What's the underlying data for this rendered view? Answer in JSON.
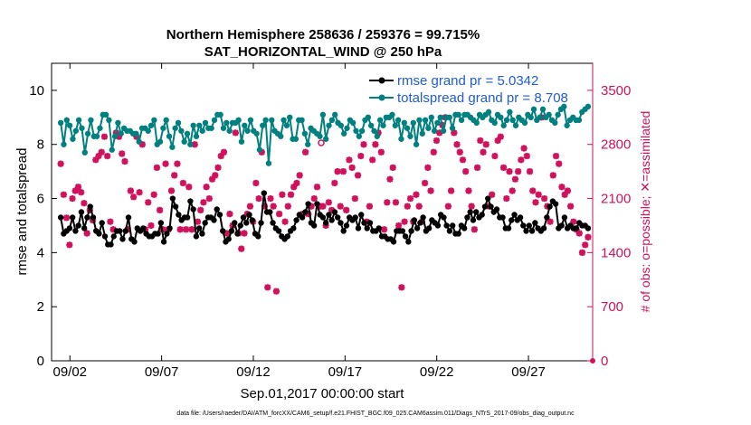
{
  "chart_data": {
    "type": "line",
    "title_line1": "Northern Hemisphere 258636 / 259376 = 99.715%",
    "title_line2": "SAT_HORIZONTAL_WIND @ 250 hPa",
    "xlabel": "Sep.01,2017 00:00:00 start",
    "ylabel": "rmse and totalspread",
    "ylabel_right": "# of obs: o=possible; ✕=assimilated",
    "footer": "data file: /Users/raeder/DAI/ATM_forcXX/CAM6_setup/f.e21.FHIST_BGC.f09_025.CAM6assim.011/Diags_NTrS_2017-09/obs_diag_output.nc",
    "xlim": [
      0.5,
      30.0
    ],
    "ylim": [
      0,
      11
    ],
    "ylim_right": [
      0,
      3850
    ],
    "x_ticks": [
      1.5,
      6.5,
      11.5,
      16.5,
      21.5,
      26.5
    ],
    "x_tick_labels": [
      "09/02",
      "09/07",
      "09/12",
      "09/17",
      "09/22",
      "09/27"
    ],
    "y_ticks": [
      0,
      2,
      4,
      6,
      8,
      10
    ],
    "y_ticks_right": [
      0,
      700,
      1400,
      2100,
      2800,
      3500
    ],
    "legend": [
      {
        "name": "rmse",
        "label": "rmse grand pr = 5.0342"
      },
      {
        "name": "totalspread",
        "label": "totalspread grand pr = 8.708"
      }
    ],
    "colors": {
      "rmse": "#000000",
      "totalspread": "#00807e",
      "obs": "#d0115b"
    },
    "series": [
      {
        "name": "rmse",
        "values": [
          5.3,
          4.7,
          4.8,
          4.9,
          5.3,
          4.8,
          5.0,
          5.5,
          4.9,
          5.3,
          5.7,
          5.3,
          4.8,
          4.7,
          5.1,
          4.6,
          4.3,
          4.3,
          4.6,
          4.8,
          4.8,
          4.5,
          4.8,
          5.3,
          4.5,
          4.4,
          4.9,
          4.8,
          4.9,
          4.7,
          4.6,
          4.6,
          4.7,
          4.7,
          5.1,
          4.4,
          4.7,
          4.9,
          6.0,
          5.7,
          5.4,
          5.2,
          5.3,
          5.3,
          5.9,
          5.6,
          4.6,
          4.9,
          4.7,
          5.1,
          5.3,
          5.3,
          5.2,
          5.6,
          5.4,
          4.8,
          4.4,
          4.5,
          4.8,
          5.1,
          4.7,
          5.0,
          5.3,
          5.1,
          5.4,
          5.2,
          4.7,
          4.6,
          5.1,
          6.2,
          5.5,
          5.5,
          5.1,
          4.9,
          4.8,
          4.6,
          4.5,
          4.6,
          4.8,
          4.9,
          5.2,
          5.4,
          5.3,
          5.5,
          5.8,
          5.1,
          5.0,
          5.8,
          5.4,
          5.3,
          5.1,
          5.4,
          5.2,
          5.5,
          5.3,
          5.1,
          4.8,
          5.0,
          5.3,
          5.2,
          5.3,
          4.9,
          5.4,
          5.1,
          4.9,
          5.1,
          4.8,
          4.8,
          4.9,
          4.6,
          4.6,
          4.5,
          4.5,
          4.4,
          4.8,
          4.8,
          4.8,
          4.6,
          4.4,
          4.8,
          5.2,
          4.9,
          5.1,
          5.3,
          4.8,
          4.9,
          5.2,
          5.1,
          5.0,
          5.4,
          5.3,
          5.0,
          4.8,
          5.0,
          4.7,
          4.7,
          5.0,
          4.9,
          5.3,
          5.5,
          5.2,
          5.5,
          5.3,
          5.4,
          5.7,
          6.0,
          5.7,
          5.5,
          5.6,
          5.3,
          5.3,
          4.9,
          4.9,
          5.2,
          5.4,
          5.2,
          5.3,
          5.0,
          4.8,
          5.0,
          4.8,
          5.1,
          4.9,
          4.8,
          4.9,
          5.3,
          5.7,
          5.9,
          5.8,
          4.9,
          5.0,
          5.3,
          4.9,
          5.0,
          4.9,
          4.9,
          5.1,
          5.0,
          5.0,
          4.9
        ]
      },
      {
        "name": "totalspread",
        "values": [
          8.8,
          8.0,
          8.9,
          8.7,
          8.2,
          8.5,
          8.9,
          8.6,
          7.7,
          8.4,
          8.9,
          8.3,
          8.3,
          8.6,
          9.1,
          9.1,
          8.9,
          7.8,
          8.3,
          8.8,
          8.4,
          8.6,
          8.5,
          8.5,
          8.4,
          8.4,
          8.1,
          8.6,
          8.6,
          8.5,
          8.7,
          8.9,
          8.0,
          8.1,
          8.6,
          8.9,
          8.3,
          7.9,
          8.6,
          8.8,
          8.5,
          8.1,
          8.4,
          8.0,
          8.7,
          8.3,
          8.7,
          8.5,
          8.8,
          8.6,
          8.6,
          8.9,
          9.1,
          9.1,
          8.6,
          8.8,
          8.5,
          8.8,
          8.8,
          8.9,
          8.1,
          8.7,
          8.5,
          8.9,
          8.5,
          8.4,
          7.8,
          8.7,
          8.9,
          7.3,
          8.9,
          8.5,
          8.4,
          8.3,
          8.9,
          8.7,
          9.0,
          8.2,
          8.2,
          8.9,
          8.9,
          8.4,
          8.0,
          8.6,
          8.5,
          8.4,
          8.3,
          9.1,
          8.2,
          8.7,
          8.9,
          9.1,
          8.8,
          8.7,
          8.4,
          8.6,
          8.9,
          8.8,
          8.5,
          8.3,
          8.5,
          8.9,
          9.0,
          8.7,
          8.5,
          8.3,
          8.9,
          8.7,
          9.0,
          9.0,
          9.1,
          8.7,
          8.9,
          8.2,
          8.8,
          8.6,
          8.3,
          8.8,
          8.0,
          8.9,
          8.4,
          8.9,
          8.6,
          9.0,
          8.5,
          8.8,
          9.0,
          8.5,
          9.0,
          9.0,
          8.6,
          9.1,
          9.1,
          8.9,
          9.1,
          9.1,
          9.0,
          8.9,
          8.8,
          9.1,
          9.0,
          9.1,
          9.2,
          8.9,
          8.8,
          9.1,
          9.0,
          8.7,
          8.9,
          9.2,
          8.9,
          8.7,
          9.0,
          8.9,
          8.8,
          9.1,
          9.0,
          9.3,
          8.9,
          9.0,
          9.3,
          9.0,
          9.1,
          8.9,
          8.8,
          9.1,
          9.3,
          9.4,
          8.7,
          8.9,
          9.0,
          8.9,
          8.9,
          9.2,
          9.3,
          9.4
        ]
      },
      {
        "name": "obs_possible",
        "x": [
          15.2
        ],
        "values": [
          2820
        ]
      },
      {
        "name": "obs_assimilated",
        "values": [
          2550,
          2150,
          1850,
          1500,
          2100,
          2200,
          2250,
          2180,
          2040,
          1650,
          1950,
          1820,
          2600,
          2650,
          2700,
          2900,
          2650,
          1800,
          1700,
          2950,
          2900,
          2680,
          2580,
          1700,
          2200,
          2120,
          2900,
          2180,
          2800,
          1700,
          2050,
          1750,
          2150,
          2500,
          1950,
          1700,
          2550,
          1700,
          2200,
          2400,
          2550,
          1700,
          2300,
          1700,
          2250,
          1700,
          2800,
          1800,
          1950,
          2050,
          2250,
          2100,
          2350,
          2400,
          2500,
          2650,
          2700,
          1650,
          1900,
          1750,
          2950,
          1650,
          1450,
          1650,
          1900,
          2000,
          1800,
          2300,
          2100,
          2700,
          2000,
          950,
          2100,
          2000,
          900,
          1900,
          2150,
          1800,
          2000,
          2150,
          2250,
          2300,
          2400,
          1900,
          2700,
          1900,
          2000,
          2100,
          2250,
          2000,
          2000,
          1750,
          2050,
          1950,
          2300,
          2450,
          2000,
          2450,
          1950,
          2600,
          2500,
          2100,
          2400,
          2650,
          2800,
          1800,
          2000,
          2600,
          2800,
          2950,
          2700,
          1700,
          2050,
          2350,
          2500,
          2050,
          1750,
          950,
          1800,
          2000,
          2100,
          1800,
          2150,
          2000,
          1800,
          2300,
          2500,
          2200,
          2700,
          2850,
          2950,
          3050,
          3150,
          2000,
          2200,
          2950,
          2800,
          2700,
          2600,
          2450,
          2200,
          2000,
          1700,
          2500,
          2850,
          2700,
          2800,
          2000,
          2150,
          2650,
          2850,
          2900,
          2500,
          2100,
          2450,
          2200,
          2350,
          2450,
          2600,
          2750,
          2650,
          2450,
          2200,
          2050,
          2150,
          3150,
          2100,
          2000,
          1800,
          2400,
          2650,
          2550,
          2250,
          2150,
          2200,
          2000,
          1800,
          1700,
          1650,
          1400,
          1500,
          1600
        ]
      }
    ]
  }
}
